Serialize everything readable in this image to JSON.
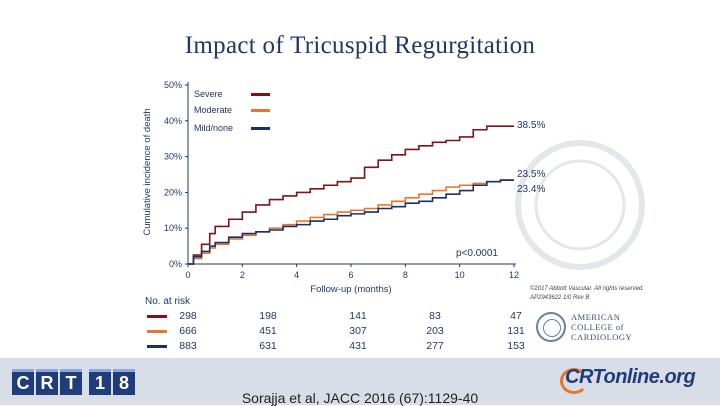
{
  "title": "Impact of Tricuspid Regurgitation",
  "chart_data": {
    "type": "line",
    "xlabel": "Follow-up (months)",
    "ylabel": "Cumulative incidence of death",
    "xlim": [
      0,
      12
    ],
    "ylim": [
      0,
      50
    ],
    "xticks": [
      "0",
      "2",
      "4",
      "6",
      "8",
      "10",
      "12"
    ],
    "yticks": [
      "0%",
      "10%",
      "20%",
      "30%",
      "40%",
      "50%"
    ],
    "series": [
      {
        "name": "Severe",
        "color": "#7b1416",
        "end_label": "38.5%",
        "x": [
          0,
          0.2,
          0.5,
          0.8,
          1.0,
          1.5,
          2.0,
          2.5,
          3.0,
          3.5,
          4.0,
          4.5,
          5.0,
          5.5,
          6.0,
          6.5,
          7.0,
          7.5,
          8.0,
          8.5,
          9.0,
          9.5,
          10.0,
          10.5,
          11.0,
          11.5,
          12.0
        ],
        "values": [
          0,
          2.5,
          5.5,
          8.5,
          10.5,
          12.5,
          14.5,
          16.5,
          18.0,
          19.0,
          20.0,
          21.0,
          22.0,
          23.0,
          24.0,
          27.0,
          29.0,
          30.5,
          32.0,
          33.0,
          34.0,
          34.5,
          35.5,
          37.5,
          38.5,
          38.5,
          38.5
        ]
      },
      {
        "name": "Moderate",
        "color": "#e8772e",
        "end_label": "23.5%",
        "x": [
          0,
          0.2,
          0.5,
          0.8,
          1.0,
          1.5,
          2.0,
          2.5,
          3.0,
          3.5,
          4.0,
          4.5,
          5.0,
          5.5,
          6.0,
          6.5,
          7.0,
          7.5,
          8.0,
          8.5,
          9.0,
          9.5,
          10.0,
          10.5,
          11.0,
          11.5,
          12.0
        ],
        "values": [
          0,
          1.5,
          3.0,
          4.5,
          5.5,
          7.0,
          8.0,
          9.0,
          10.0,
          11.0,
          12.0,
          13.0,
          13.8,
          14.5,
          15.0,
          15.5,
          16.5,
          17.5,
          18.5,
          19.5,
          20.5,
          21.5,
          22.0,
          22.5,
          23.0,
          23.5,
          23.5
        ]
      },
      {
        "name": "Mild/none",
        "color": "#1a2f6b",
        "end_label": "23.4%",
        "x": [
          0,
          0.2,
          0.5,
          0.8,
          1.0,
          1.5,
          2.0,
          2.5,
          3.0,
          3.5,
          4.0,
          4.5,
          5.0,
          5.5,
          6.0,
          6.5,
          7.0,
          7.5,
          8.0,
          8.5,
          9.0,
          9.5,
          10.0,
          10.5,
          11.0,
          11.5,
          12.0
        ],
        "values": [
          0,
          2.0,
          3.5,
          5.0,
          6.0,
          7.5,
          8.5,
          9.0,
          9.5,
          10.5,
          11.0,
          12.0,
          12.5,
          13.5,
          14.0,
          14.5,
          15.5,
          16.0,
          17.0,
          17.5,
          18.5,
          19.5,
          20.5,
          22.0,
          23.0,
          23.4,
          23.4
        ]
      }
    ],
    "p_value": "p<0.0001"
  },
  "at_risk": {
    "title": "No. at risk",
    "rows": [
      {
        "color": "#7b1416",
        "values": [
          "298",
          "198",
          "141",
          "83",
          "47"
        ]
      },
      {
        "color": "#e8772e",
        "values": [
          "666",
          "451",
          "307",
          "203",
          "131"
        ]
      },
      {
        "color": "#1a2f6b",
        "values": [
          "883",
          "631",
          "431",
          "277",
          "153"
        ]
      }
    ]
  },
  "credit": {
    "line1": "©2017 Abbott Vascular. All rights reserved.",
    "line2": "AP2943622 1/0 Rev B"
  },
  "acc": {
    "line1": "AMERICAN",
    "line2": "COLLEGE of",
    "line3": "CARDIOLOGY"
  },
  "footer": {
    "logo_chars": [
      "C",
      "R",
      "T",
      "1",
      "8"
    ],
    "citation": "Sorajja et al, JACC 2016 (67):1129-40",
    "brand": "CRTonline.org"
  }
}
